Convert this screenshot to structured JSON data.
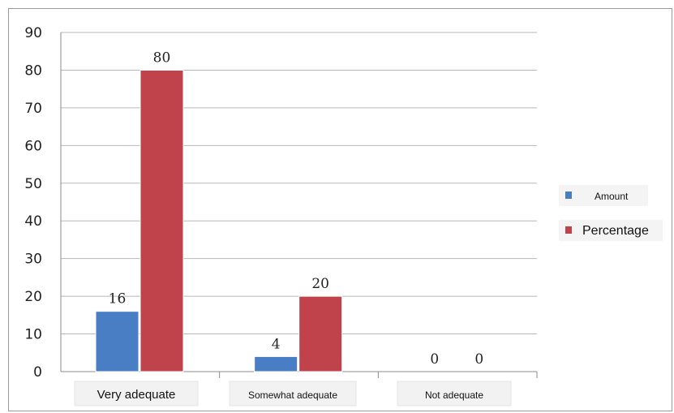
{
  "chart_data": {
    "type": "bar",
    "categories": [
      "Very adequate",
      "Somewhat adequate",
      "Not adequate"
    ],
    "series": [
      {
        "name": "Amount",
        "values": [
          16,
          4,
          0
        ],
        "color": "#4a7ec4"
      },
      {
        "name": "Percentage",
        "values": [
          80,
          20,
          0
        ],
        "color": "#c0424a"
      }
    ],
    "data_labels": [
      [
        "16",
        "4",
        "0"
      ],
      [
        "80",
        "20",
        "0"
      ]
    ],
    "ylim": [
      0,
      90
    ],
    "yticks": [
      "0",
      "10",
      "20",
      "30",
      "40",
      "50",
      "60",
      "70",
      "80",
      "90"
    ],
    "grid": true,
    "legend": "right"
  }
}
